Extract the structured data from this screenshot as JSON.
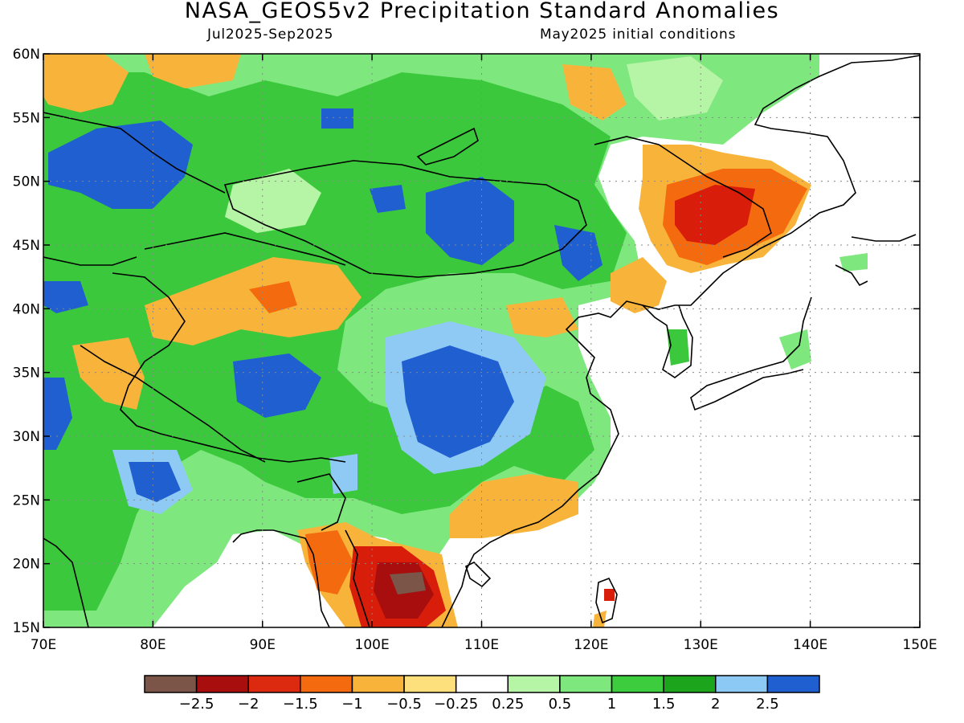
{
  "header": {
    "title": "NASA_GEOS5v2 Precipitation Standard Anomalies",
    "period": "Jul2025-Sep2025",
    "init": "May2025 initial conditions"
  },
  "map": {
    "lon_range": [
      70,
      150
    ],
    "lat_range": [
      15,
      60
    ],
    "lon_ticks": [
      "70E",
      "80E",
      "90E",
      "100E",
      "110E",
      "120E",
      "130E",
      "140E",
      "150E"
    ],
    "lat_ticks": [
      "15N",
      "20N",
      "25N",
      "30N",
      "35N",
      "40N",
      "45N",
      "50N",
      "55N",
      "60N"
    ],
    "grid_lines": "dotted",
    "land_fill": {
      "green": "#3cc83c",
      "light_green": "#7ee87e",
      "blue": "#1f5fd0",
      "light_blue": "#8fcaf5",
      "orange": "#f5b23c",
      "red": "#d81e0a"
    }
  },
  "colorbar": {
    "colors": [
      "#7a5548",
      "#a80e0e",
      "#dc2a10",
      "#f46a0e",
      "#f8b43a",
      "#fde07c",
      "#ffffff",
      "#b6f4a6",
      "#7ee87e",
      "#3dcc3d",
      "#1ca51c",
      "#8ccaf5",
      "#1f5fd0"
    ],
    "labels": [
      "-2.5",
      "-2",
      "-1.5",
      "-1",
      "-0.5",
      "-0.25",
      "0.25",
      "0.5",
      "1",
      "1.5",
      "2",
      "2.5"
    ]
  }
}
